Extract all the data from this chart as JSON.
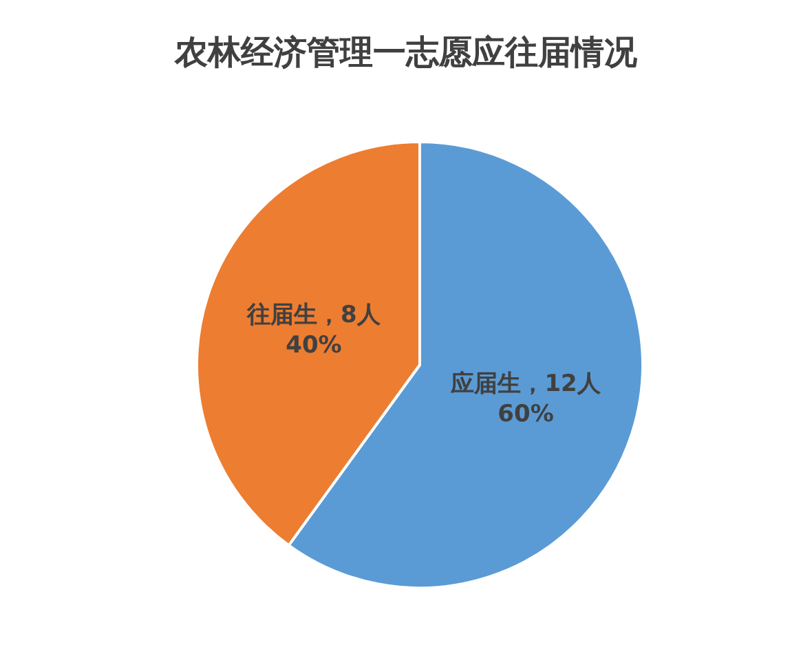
{
  "chart_data": {
    "type": "pie",
    "title": "农林经济管理一志愿应往届情况",
    "categories": [
      "应届生",
      "往届生"
    ],
    "values": [
      12,
      8
    ],
    "colors": [
      "#5b9bd5",
      "#ed7d31"
    ],
    "value_labels": [
      "，12人\n60%",
      "，8人\n40%"
    ],
    "legend": false
  }
}
